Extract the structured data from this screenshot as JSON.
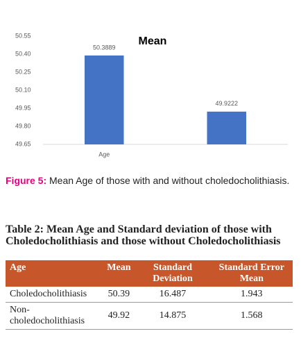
{
  "chart_data": {
    "type": "bar",
    "title": "Mean",
    "categories": [
      "Age",
      null
    ],
    "values": [
      50.3889,
      49.9222
    ],
    "color": "#4472c4",
    "ylim": [
      49.65,
      50.55
    ],
    "yticks": [
      49.65,
      49.8,
      49.95,
      50.1,
      50.25,
      50.4,
      50.55
    ],
    "yticks_labels_fixed": null,
    "grid": false
  },
  "figure_caption": {
    "label": "Figure 5:",
    "text": "Mean Age of those with and without choledocholithiasis."
  },
  "table": {
    "title": "Table 2: Mean Age and Standard deviation of those with Choledocholithiasis and those without Choledocholithiasis",
    "columns": [
      "Age",
      "Mean",
      "Standard Deviation",
      "Standard Error Mean"
    ],
    "rows": [
      [
        "Choledocholithiasis",
        50.39,
        16.487,
        1.943
      ],
      [
        "Non-choledocholithiasis",
        49.92,
        14.875,
        1.568
      ]
    ]
  }
}
